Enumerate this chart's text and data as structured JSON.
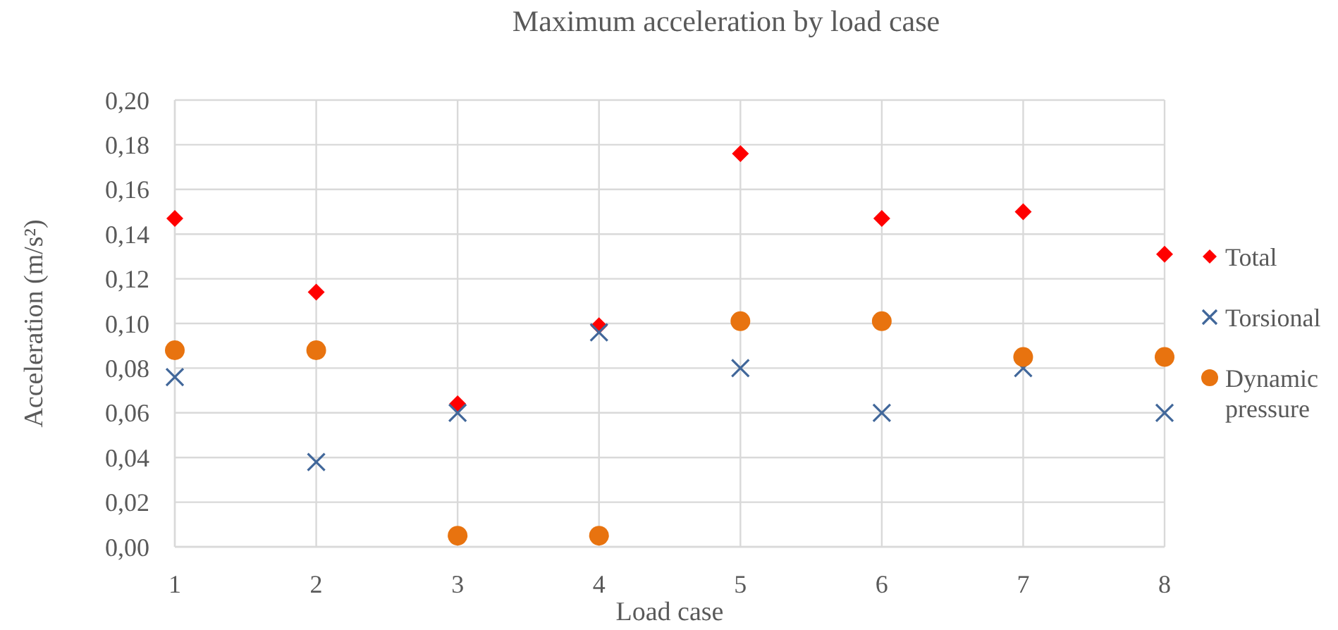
{
  "chart_data": {
    "type": "scatter",
    "title": "Maximum acceleration by load case",
    "xlabel": "Load case",
    "ylabel": "Acceleration (m/s²)",
    "x": [
      1,
      2,
      3,
      4,
      5,
      6,
      7,
      8
    ],
    "series": [
      {
        "name": "Total",
        "color": "#ff0000",
        "marker": "diamond",
        "values": [
          0.147,
          0.114,
          0.064,
          0.099,
          0.176,
          0.147,
          0.15,
          0.131
        ]
      },
      {
        "name": "Torsional",
        "color": "#41679a",
        "marker": "cross",
        "values": [
          0.076,
          0.038,
          0.06,
          0.096,
          0.08,
          0.06,
          0.08,
          0.06
        ]
      },
      {
        "name": "Dynamic pressure",
        "color": "#e8730f",
        "marker": "circle",
        "values": [
          0.088,
          0.088,
          0.005,
          0.005,
          0.101,
          0.101,
          0.085,
          0.085
        ]
      }
    ],
    "xlim": [
      1,
      8
    ],
    "xticks": [
      1,
      2,
      3,
      4,
      5,
      6,
      7,
      8
    ],
    "ylim": [
      0,
      0.2
    ],
    "yticks": [
      {
        "value": 0,
        "label": "0,00"
      },
      {
        "value": 0.02,
        "label": "0,02"
      },
      {
        "value": 0.04,
        "label": "0,04"
      },
      {
        "value": 0.06,
        "label": "0,06"
      },
      {
        "value": 0.08,
        "label": "0,08"
      },
      {
        "value": 0.1,
        "label": "0,10"
      },
      {
        "value": 0.12,
        "label": "0,12"
      },
      {
        "value": 0.14,
        "label": "0,14"
      },
      {
        "value": 0.16,
        "label": "0,16"
      },
      {
        "value": 0.18,
        "label": "0,18"
      },
      {
        "value": 0.2,
        "label": "0,20"
      }
    ],
    "grid": true,
    "legend": "right"
  }
}
